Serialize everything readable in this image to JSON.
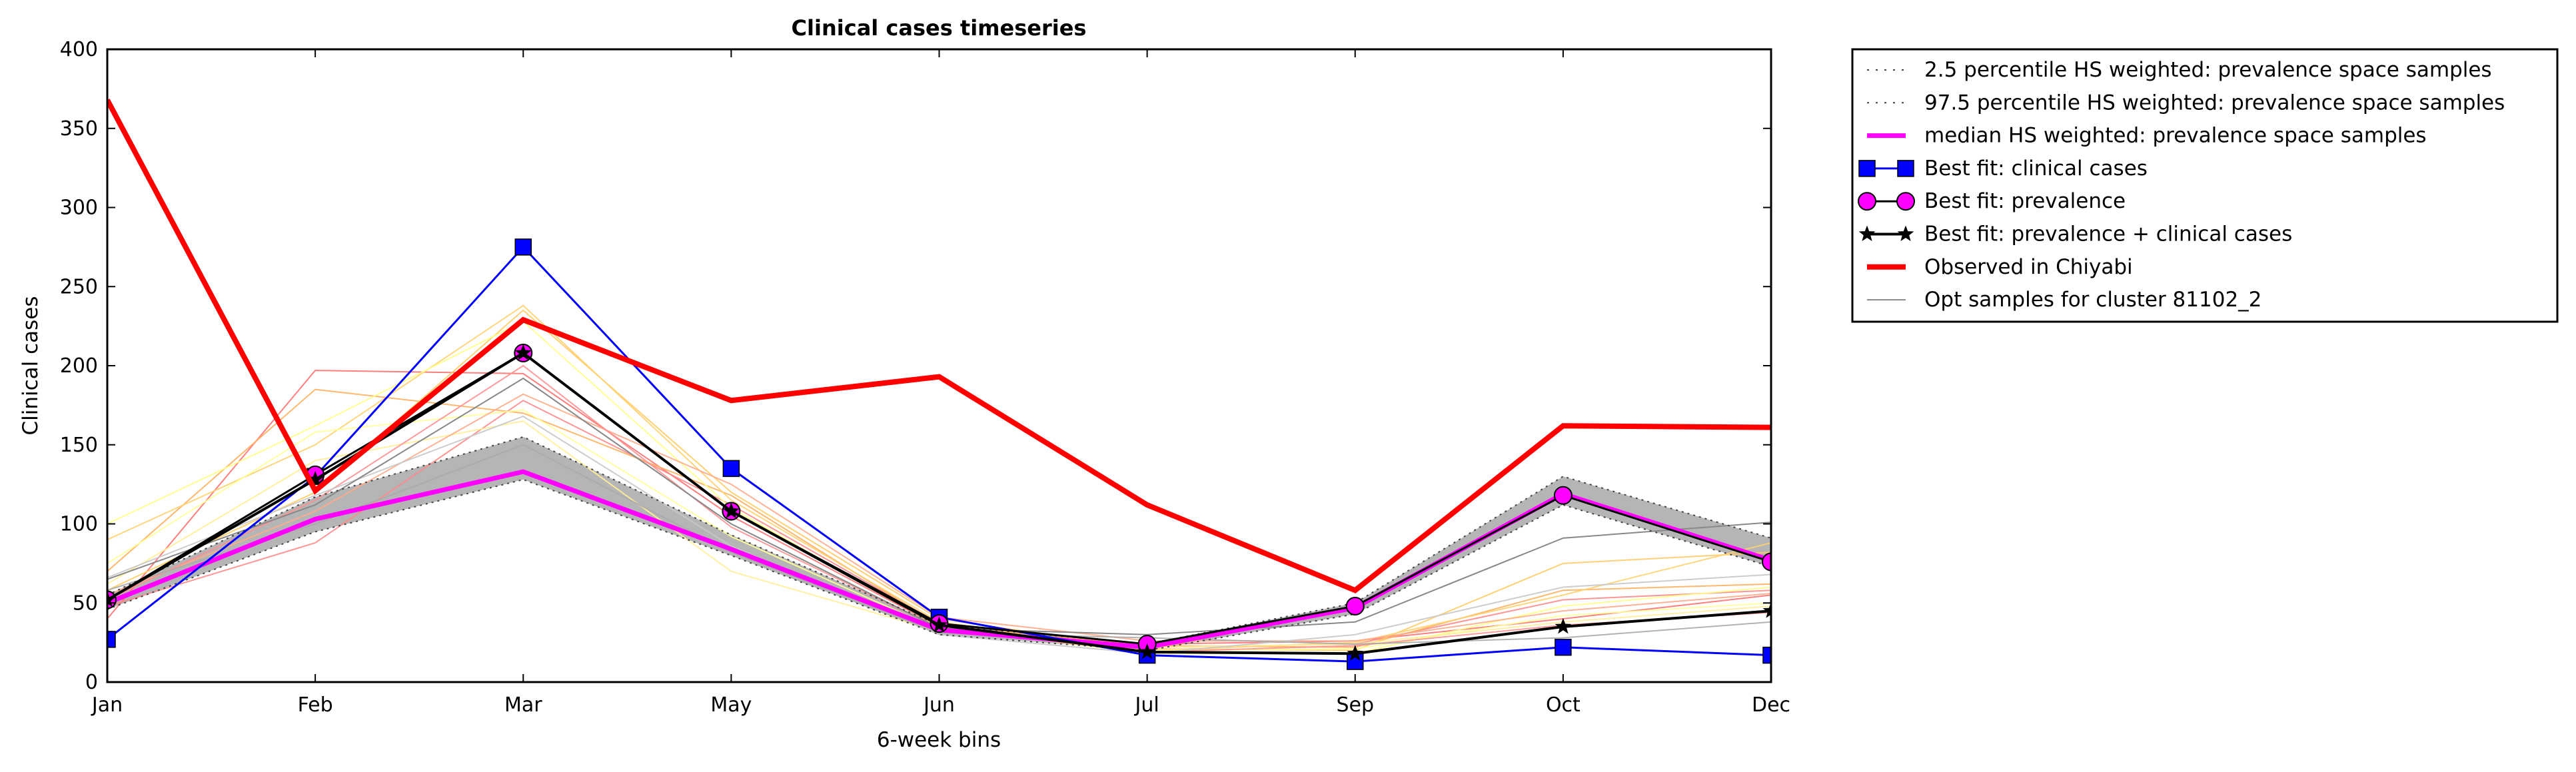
{
  "chart_data": {
    "type": "line",
    "title": "Clinical cases timeseries",
    "xlabel": "6-week bins",
    "ylabel": "Clinical cases",
    "categories": [
      "Jan",
      "Feb",
      "Mar",
      "May",
      "Jun",
      "Jul",
      "Sep",
      "Oct",
      "Dec"
    ],
    "ylim": [
      0,
      400
    ],
    "yticks": [
      0,
      50,
      100,
      150,
      200,
      250,
      300,
      350,
      400
    ],
    "grid": false,
    "legend_position": "outside right, top",
    "band": {
      "lower": [
        46,
        95,
        128,
        80,
        30,
        20,
        43,
        112,
        73
      ],
      "upper": [
        55,
        117,
        155,
        93,
        36,
        24,
        50,
        130,
        91
      ],
      "color": "#b5b5b5"
    },
    "series": [
      {
        "name": "2.5 percentile HS weighted: prevalence space samples",
        "values": [
          46,
          95,
          128,
          80,
          30,
          20,
          43,
          112,
          73
        ],
        "color": "#444444",
        "style": "dotted"
      },
      {
        "name": "97.5 percentile HS weighted: prevalence space samples",
        "values": [
          55,
          117,
          155,
          93,
          36,
          24,
          50,
          130,
          91
        ],
        "color": "#444444",
        "style": "dotted"
      },
      {
        "name": "median HS weighted: prevalence space samples",
        "values": [
          50,
          103,
          133,
          84,
          33,
          22,
          47,
          119,
          77
        ],
        "color": "#ff00ff",
        "style": "solid"
      },
      {
        "name": "Best fit: clinical cases",
        "values": [
          27,
          130,
          275,
          135,
          41,
          17,
          13,
          22,
          17
        ],
        "color": "#0000ff",
        "style": "square"
      },
      {
        "name": "Best fit: prevalence",
        "values": [
          52,
          131,
          208,
          108,
          37,
          24,
          48,
          118,
          76
        ],
        "color": "#ff00ff",
        "style": "circle"
      },
      {
        "name": "Best fit: prevalence + clinical cases",
        "values": [
          52,
          128,
          208,
          108,
          36,
          19,
          18,
          35,
          45
        ],
        "color": "#000000",
        "style": "star"
      },
      {
        "name": "Observed in Chiyabi",
        "values": [
          368,
          121,
          229,
          178,
          193,
          112,
          58,
          162,
          161
        ],
        "color": "#ff0000",
        "style": "thick"
      },
      {
        "name": "Opt samples for cluster 81102_2",
        "values": [
          65,
          112,
          192,
          100,
          34,
          30,
          38,
          91,
          101
        ],
        "color": "#888888",
        "style": "thin"
      }
    ],
    "sample_traces": [
      {
        "color": "#ff7070",
        "values": [
          40,
          197,
          195,
          105,
          35,
          24,
          26,
          40,
          55
        ]
      },
      {
        "color": "#ff8a8a",
        "values": [
          48,
          88,
          178,
          112,
          37,
          22,
          24,
          52,
          58
        ]
      },
      {
        "color": "#ffb060",
        "values": [
          70,
          185,
          170,
          118,
          36,
          23,
          22,
          58,
          62
        ]
      },
      {
        "color": "#ffcc66",
        "values": [
          58,
          120,
          235,
          120,
          40,
          21,
          20,
          75,
          82
        ]
      },
      {
        "color": "#ffd070",
        "values": [
          90,
          150,
          238,
          115,
          38,
          20,
          25,
          55,
          88
        ]
      },
      {
        "color": "#ffff88",
        "values": [
          100,
          162,
          228,
          110,
          35,
          18,
          18,
          48,
          60
        ]
      },
      {
        "color": "#ffff99",
        "values": [
          75,
          158,
          172,
          92,
          33,
          20,
          21,
          42,
          50
        ]
      },
      {
        "color": "#ffee99",
        "values": [
          62,
          140,
          165,
          70,
          32,
          22,
          24,
          38,
          48
        ]
      },
      {
        "color": "#ffaa88",
        "values": [
          55,
          108,
          182,
          125,
          41,
          26,
          26,
          45,
          56
        ]
      },
      {
        "color": "#ff9090",
        "values": [
          52,
          115,
          200,
          98,
          34,
          19,
          23,
          36,
          44
        ]
      },
      {
        "color": "#c8c8c8",
        "values": [
          66,
          118,
          168,
          86,
          30,
          18,
          30,
          60,
          68
        ]
      },
      {
        "color": "#aaaaaa",
        "values": [
          58,
          100,
          150,
          82,
          31,
          28,
          24,
          28,
          38
        ]
      }
    ]
  }
}
